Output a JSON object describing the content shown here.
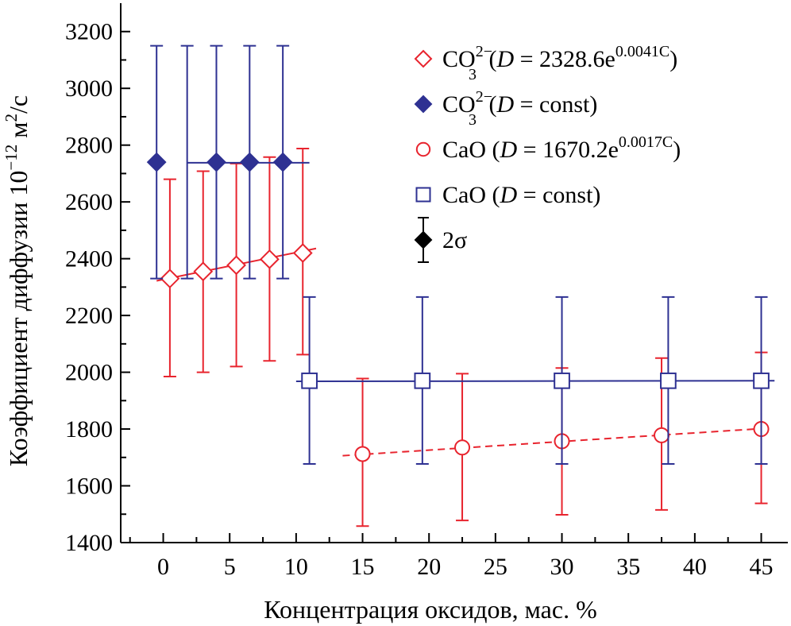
{
  "colors": {
    "red": "#e8242e",
    "blue": "#2e3192",
    "black": "#000000"
  },
  "chart_data": {
    "type": "scatter",
    "xlabel": "Концентрация оксидов, мас. %",
    "ylabel_main": "Коэффициент диффузии 10",
    "ylabel_exp": "−12",
    "ylabel_unit_a": " м",
    "ylabel_unit_sup": "2",
    "ylabel_unit_b": "/с",
    "xlim": [
      -3.2,
      47
    ],
    "ylim": [
      1400,
      3300
    ],
    "xticks": [
      0,
      5,
      10,
      15,
      20,
      25,
      30,
      35,
      40,
      45
    ],
    "yticks": [
      1400,
      1600,
      1800,
      2000,
      2200,
      2400,
      2600,
      2800,
      3000,
      3200
    ],
    "series": [
      {
        "name": "CO3 2− (D = 2328.6e^0.0041C)",
        "marker": "diamond-open",
        "color": "red",
        "points": [
          {
            "x": 0.5,
            "y": 2330,
            "lo": 1985,
            "hi": 2680
          },
          {
            "x": 3.0,
            "y": 2355,
            "lo": 2000,
            "hi": 2708
          },
          {
            "x": 5.5,
            "y": 2377,
            "lo": 2020,
            "hi": 2735
          },
          {
            "x": 8.0,
            "y": 2398,
            "lo": 2040,
            "hi": 2758
          },
          {
            "x": 10.5,
            "y": 2420,
            "lo": 2062,
            "hi": 2788
          }
        ],
        "fit": {
          "x": [
            -0.5,
            11.5
          ],
          "y": [
            2322,
            2436
          ],
          "dash": false
        }
      },
      {
        "name": "CO3 2− (D = const)",
        "marker": "diamond-filled",
        "color": "blue",
        "points": [
          {
            "x": -0.5,
            "y": 2740,
            "lo": 2330,
            "hi": 3150
          },
          {
            "x": 4.0,
            "y": 2740,
            "lo": 2330,
            "hi": 3150
          },
          {
            "x": 6.5,
            "y": 2740,
            "lo": 2330,
            "hi": 3150
          },
          {
            "x": 9.0,
            "y": 2740,
            "lo": 2330,
            "hi": 3150
          }
        ],
        "extra_bars": [
          {
            "x": 1.8,
            "lo": 2330,
            "hi": 3150
          }
        ],
        "fit": {
          "x": [
            1.8,
            11.0
          ],
          "y": [
            2738,
            2738
          ],
          "dash": false
        }
      },
      {
        "name": "CaO (D = 1670.2e^0.0017C)",
        "marker": "circle-open",
        "color": "red",
        "points": [
          {
            "x": 15.0,
            "y": 1712,
            "lo": 1458,
            "hi": 1978
          },
          {
            "x": 22.5,
            "y": 1735,
            "lo": 1478,
            "hi": 1995
          },
          {
            "x": 30.0,
            "y": 1757,
            "lo": 1498,
            "hi": 2015
          },
          {
            "x": 37.5,
            "y": 1778,
            "lo": 1515,
            "hi": 2050
          },
          {
            "x": 45.0,
            "y": 1800,
            "lo": 1538,
            "hi": 2070
          }
        ],
        "fit": {
          "x": [
            13.5,
            45.5
          ],
          "y": [
            1706,
            1803
          ],
          "dash": true
        }
      },
      {
        "name": "CaO (D = const)",
        "marker": "square-open",
        "color": "blue",
        "points": [
          {
            "x": 11.0,
            "y": 1970,
            "lo": 1677,
            "hi": 2265
          },
          {
            "x": 19.5,
            "y": 1970,
            "lo": 1677,
            "hi": 2265
          },
          {
            "x": 30.0,
            "y": 1970,
            "lo": 1677,
            "hi": 2265
          },
          {
            "x": 38.0,
            "y": 1970,
            "lo": 1677,
            "hi": 2265
          },
          {
            "x": 45.0,
            "y": 1970,
            "lo": 1677,
            "hi": 2265
          }
        ],
        "fit": {
          "x": [
            10.0,
            46.0
          ],
          "y": [
            1968,
            1970
          ],
          "dash": false
        }
      }
    ],
    "legend": [
      {
        "base": "CO",
        "sub": "3",
        "sup": "2−",
        "pre": " (",
        "var": "D",
        "mid": " = 2328.6e",
        "exp": "0.0041C",
        "post": ")",
        "marker": "diamond-open",
        "color": "red"
      },
      {
        "base": "CO",
        "sub": "3",
        "sup": "2−",
        "pre": " (",
        "var": "D",
        "mid": " = const)",
        "exp": "",
        "post": "",
        "marker": "diamond-filled",
        "color": "blue"
      },
      {
        "base": "CaO",
        "sub": "",
        "sup": "",
        "pre": " (",
        "var": "D",
        "mid": " = 1670.2e",
        "exp": "0.0017C",
        "post": ")",
        "marker": "circle-open",
        "color": "red"
      },
      {
        "base": "CaO",
        "sub": "",
        "sup": "",
        "pre": " (",
        "var": "D",
        "mid": " = const)",
        "exp": "",
        "post": "",
        "marker": "square-open",
        "color": "blue"
      },
      {
        "base": "2σ",
        "sub": "",
        "sup": "",
        "pre": "",
        "var": "",
        "mid": "",
        "exp": "",
        "post": "",
        "marker": "errorbar-filled",
        "color": "black"
      }
    ]
  }
}
